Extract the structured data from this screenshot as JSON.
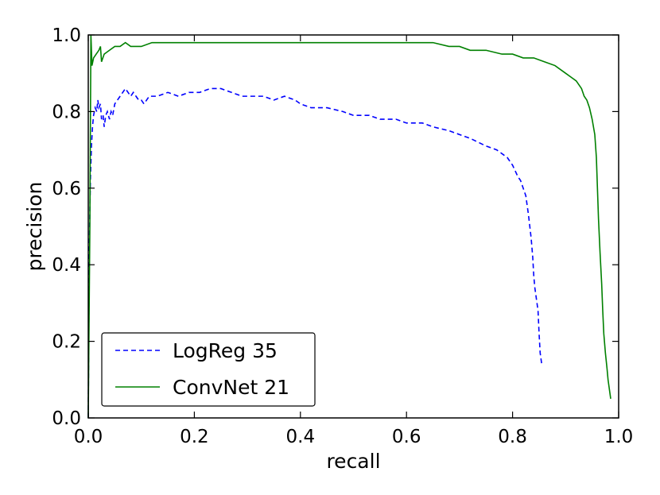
{
  "chart_data": {
    "type": "line",
    "title": "",
    "xlabel": "recall",
    "ylabel": "precision",
    "xlim": [
      0.0,
      1.0
    ],
    "ylim": [
      0.0,
      1.0
    ],
    "xticks": [
      "0.0",
      "0.2",
      "0.4",
      "0.6",
      "0.8",
      "1.0"
    ],
    "yticks": [
      "0.0",
      "0.2",
      "0.4",
      "0.6",
      "0.8",
      "1.0"
    ],
    "grid": false,
    "legend_position": "bottom-left",
    "series": [
      {
        "name": "LogReg 35",
        "color": "#0000ff",
        "style": "dashed",
        "points": [
          [
            0.0,
            0.0
          ],
          [
            0.002,
            0.45
          ],
          [
            0.004,
            0.62
          ],
          [
            0.006,
            0.71
          ],
          [
            0.008,
            0.76
          ],
          [
            0.01,
            0.79
          ],
          [
            0.013,
            0.81
          ],
          [
            0.016,
            0.8
          ],
          [
            0.018,
            0.83
          ],
          [
            0.02,
            0.81
          ],
          [
            0.023,
            0.82
          ],
          [
            0.025,
            0.78
          ],
          [
            0.028,
            0.79
          ],
          [
            0.03,
            0.76
          ],
          [
            0.033,
            0.79
          ],
          [
            0.036,
            0.8
          ],
          [
            0.04,
            0.78
          ],
          [
            0.043,
            0.8
          ],
          [
            0.046,
            0.79
          ],
          [
            0.05,
            0.82
          ],
          [
            0.055,
            0.83
          ],
          [
            0.06,
            0.84
          ],
          [
            0.065,
            0.85
          ],
          [
            0.07,
            0.86
          ],
          [
            0.075,
            0.85
          ],
          [
            0.08,
            0.84
          ],
          [
            0.085,
            0.85
          ],
          [
            0.09,
            0.84
          ],
          [
            0.095,
            0.83
          ],
          [
            0.1,
            0.83
          ],
          [
            0.105,
            0.82
          ],
          [
            0.11,
            0.83
          ],
          [
            0.115,
            0.84
          ],
          [
            0.13,
            0.84
          ],
          [
            0.15,
            0.85
          ],
          [
            0.17,
            0.84
          ],
          [
            0.19,
            0.85
          ],
          [
            0.21,
            0.85
          ],
          [
            0.23,
            0.86
          ],
          [
            0.25,
            0.86
          ],
          [
            0.27,
            0.85
          ],
          [
            0.29,
            0.84
          ],
          [
            0.31,
            0.84
          ],
          [
            0.33,
            0.84
          ],
          [
            0.35,
            0.83
          ],
          [
            0.37,
            0.84
          ],
          [
            0.39,
            0.83
          ],
          [
            0.4,
            0.82
          ],
          [
            0.42,
            0.81
          ],
          [
            0.45,
            0.81
          ],
          [
            0.48,
            0.8
          ],
          [
            0.5,
            0.79
          ],
          [
            0.53,
            0.79
          ],
          [
            0.55,
            0.78
          ],
          [
            0.58,
            0.78
          ],
          [
            0.6,
            0.77
          ],
          [
            0.63,
            0.77
          ],
          [
            0.65,
            0.76
          ],
          [
            0.68,
            0.75
          ],
          [
            0.7,
            0.74
          ],
          [
            0.72,
            0.73
          ],
          [
            0.75,
            0.71
          ],
          [
            0.77,
            0.7
          ],
          [
            0.79,
            0.68
          ],
          [
            0.8,
            0.66
          ],
          [
            0.81,
            0.63
          ],
          [
            0.815,
            0.62
          ],
          [
            0.82,
            0.6
          ],
          [
            0.825,
            0.58
          ],
          [
            0.83,
            0.53
          ],
          [
            0.835,
            0.47
          ],
          [
            0.838,
            0.42
          ],
          [
            0.84,
            0.37
          ],
          [
            0.842,
            0.34
          ],
          [
            0.845,
            0.31
          ],
          [
            0.848,
            0.28
          ],
          [
            0.85,
            0.22
          ],
          [
            0.852,
            0.17
          ],
          [
            0.855,
            0.14
          ]
        ]
      },
      {
        "name": "ConvNet 21",
        "color": "#008000",
        "style": "solid",
        "points": [
          [
            0.0,
            0.0
          ],
          [
            0.003,
            0.5
          ],
          [
            0.005,
            1.0
          ],
          [
            0.007,
            0.92
          ],
          [
            0.01,
            0.94
          ],
          [
            0.015,
            0.95
          ],
          [
            0.02,
            0.96
          ],
          [
            0.023,
            0.97
          ],
          [
            0.025,
            0.93
          ],
          [
            0.03,
            0.95
          ],
          [
            0.04,
            0.96
          ],
          [
            0.05,
            0.97
          ],
          [
            0.06,
            0.97
          ],
          [
            0.07,
            0.98
          ],
          [
            0.08,
            0.97
          ],
          [
            0.1,
            0.97
          ],
          [
            0.12,
            0.98
          ],
          [
            0.15,
            0.98
          ],
          [
            0.2,
            0.98
          ],
          [
            0.25,
            0.98
          ],
          [
            0.3,
            0.98
          ],
          [
            0.35,
            0.98
          ],
          [
            0.4,
            0.98
          ],
          [
            0.45,
            0.98
          ],
          [
            0.5,
            0.98
          ],
          [
            0.55,
            0.98
          ],
          [
            0.6,
            0.98
          ],
          [
            0.65,
            0.98
          ],
          [
            0.68,
            0.97
          ],
          [
            0.7,
            0.97
          ],
          [
            0.72,
            0.96
          ],
          [
            0.75,
            0.96
          ],
          [
            0.78,
            0.95
          ],
          [
            0.8,
            0.95
          ],
          [
            0.82,
            0.94
          ],
          [
            0.84,
            0.94
          ],
          [
            0.86,
            0.93
          ],
          [
            0.88,
            0.92
          ],
          [
            0.9,
            0.9
          ],
          [
            0.91,
            0.89
          ],
          [
            0.92,
            0.88
          ],
          [
            0.93,
            0.86
          ],
          [
            0.935,
            0.84
          ],
          [
            0.94,
            0.83
          ],
          [
            0.945,
            0.81
          ],
          [
            0.95,
            0.78
          ],
          [
            0.955,
            0.74
          ],
          [
            0.958,
            0.68
          ],
          [
            0.96,
            0.6
          ],
          [
            0.962,
            0.52
          ],
          [
            0.965,
            0.43
          ],
          [
            0.968,
            0.35
          ],
          [
            0.97,
            0.28
          ],
          [
            0.972,
            0.22
          ],
          [
            0.975,
            0.17
          ],
          [
            0.978,
            0.13
          ],
          [
            0.98,
            0.1
          ],
          [
            0.983,
            0.07
          ],
          [
            0.985,
            0.05
          ]
        ]
      }
    ]
  }
}
